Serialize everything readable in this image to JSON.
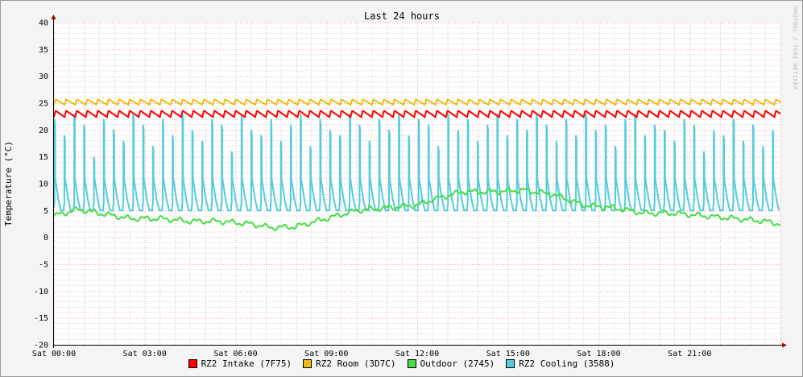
{
  "chart_data": {
    "type": "line",
    "title": "Last 24 hours",
    "ylabel": "Temperature (°C)",
    "xlabel": "",
    "watermark": "RRDTOOL / TOBI OETIKER",
    "ylim": [
      -20,
      40
    ],
    "yticks": [
      40,
      35,
      30,
      25,
      20,
      15,
      10,
      5,
      0,
      -5,
      -10,
      -15,
      -20
    ],
    "x_range_hours": [
      0,
      24
    ],
    "xticks": [
      {
        "label": "Sat 00:00",
        "hour": 0
      },
      {
        "label": "Sat 03:00",
        "hour": 3
      },
      {
        "label": "Sat 06:00",
        "hour": 6
      },
      {
        "label": "Sat 09:00",
        "hour": 9
      },
      {
        "label": "Sat 12:00",
        "hour": 12
      },
      {
        "label": "Sat 15:00",
        "hour": 15
      },
      {
        "label": "Sat 18:00",
        "hour": 18
      },
      {
        "label": "Sat 21:00",
        "hour": 21
      }
    ],
    "grid": true,
    "legend_position": "bottom",
    "series": [
      {
        "name": "RZ2 Intake (7F75)",
        "color": "#ff0000",
        "hours": [
          0,
          3,
          6,
          9,
          12,
          15,
          18,
          21,
          24
        ],
        "values": [
          23,
          23,
          23,
          23,
          23,
          23,
          23,
          23,
          23
        ],
        "oscillation_amplitude": 0.6,
        "oscillation_period_hours": 0.35
      },
      {
        "name": "RZ2 Room (3D7C)",
        "color": "#eebb11",
        "hours": [
          0,
          3,
          6,
          9,
          12,
          15,
          18,
          21,
          24
        ],
        "values": [
          25.2,
          25.2,
          25.2,
          25.2,
          25.2,
          25.2,
          25.2,
          25.2,
          25.2
        ],
        "oscillation_amplitude": 0.5,
        "oscillation_period_hours": 0.35
      },
      {
        "name": "Outdoor (2745)",
        "color": "#44dd44",
        "hours": [
          0,
          0.8,
          1.5,
          2.5,
          3.5,
          4.5,
          5.5,
          6.5,
          7.2,
          8,
          9,
          10,
          11,
          12,
          12.5,
          13.5,
          14.5,
          15.5,
          16.5,
          17.5,
          18.5,
          19.5,
          20.5,
          21.5,
          22.5,
          23.5,
          24
        ],
        "values": [
          4,
          5.2,
          4.5,
          3.5,
          3.5,
          3,
          3,
          2.5,
          1.8,
          2,
          3.5,
          5,
          5.5,
          6,
          7,
          8.5,
          8.5,
          8.8,
          8,
          6,
          5.5,
          4.5,
          4.5,
          4,
          3.5,
          3,
          2.5
        ]
      },
      {
        "name": "RZ2 Cooling (3588)",
        "color": "#55ccdd",
        "baseline": 5,
        "peak_values": [
          22,
          19,
          23,
          21,
          15,
          22,
          20,
          18,
          23,
          21,
          17,
          22,
          19,
          23,
          20,
          18,
          22,
          21,
          16,
          23,
          20,
          19,
          22,
          18,
          21,
          23,
          17,
          22,
          20,
          19,
          23,
          21,
          18,
          22,
          20,
          23,
          19,
          22,
          21,
          17,
          23,
          20,
          22,
          18,
          21,
          23,
          19,
          22,
          20,
          23,
          21,
          18,
          22,
          19,
          23,
          20,
          21,
          17,
          22,
          23,
          19,
          21,
          20,
          18,
          22,
          21,
          16,
          20,
          19,
          22,
          18,
          21,
          17,
          20
        ],
        "cycle_period_hours": 0.325
      }
    ]
  }
}
